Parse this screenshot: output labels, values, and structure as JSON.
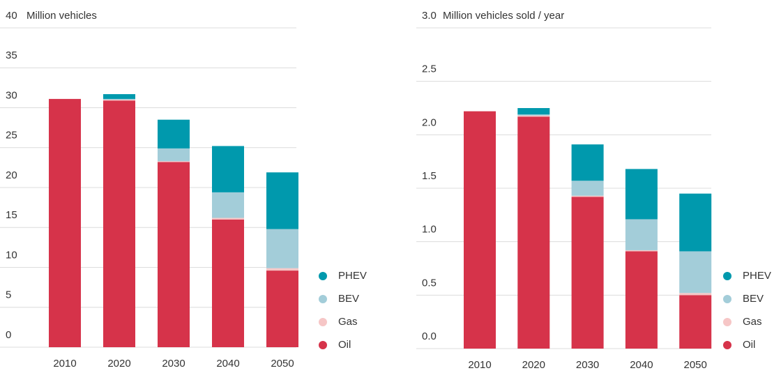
{
  "chart_data": [
    {
      "type": "bar",
      "stacked": true,
      "y_label": "Million vehicles",
      "categories": [
        "2010",
        "2020",
        "2030",
        "2040",
        "2050"
      ],
      "series": [
        {
          "name": "Oil",
          "color": "#d6334a",
          "values": [
            31.1,
            30.9,
            23.2,
            16.0,
            9.6
          ]
        },
        {
          "name": "Gas",
          "color": "#f6c6c6",
          "values": [
            0,
            0.1,
            0.1,
            0.2,
            0.3
          ]
        },
        {
          "name": "BEV",
          "color": "#a3cdd9",
          "values": [
            0,
            0.1,
            1.6,
            3.2,
            4.9
          ]
        },
        {
          "name": "PHEV",
          "color": "#0099ad",
          "values": [
            0,
            0.6,
            3.6,
            5.8,
            7.1
          ]
        }
      ],
      "ylim": [
        0,
        40
      ],
      "yticks": [
        0,
        5,
        10,
        15,
        20,
        25,
        30,
        35,
        40
      ],
      "grid": true,
      "legend": "lower right"
    },
    {
      "type": "bar",
      "stacked": true,
      "y_label": "Million vehicles sold / year",
      "categories": [
        "2010",
        "2020",
        "2030",
        "2040",
        "2050"
      ],
      "series": [
        {
          "name": "Oil",
          "color": "#d6334a",
          "values": [
            2.22,
            2.17,
            1.42,
            0.91,
            0.5
          ]
        },
        {
          "name": "Gas",
          "color": "#f6c6c6",
          "values": [
            0,
            0.01,
            0.01,
            0.01,
            0.02
          ]
        },
        {
          "name": "BEV",
          "color": "#a3cdd9",
          "values": [
            0,
            0.01,
            0.14,
            0.29,
            0.39
          ]
        },
        {
          "name": "PHEV",
          "color": "#0099ad",
          "values": [
            0,
            0.06,
            0.34,
            0.47,
            0.54
          ]
        }
      ],
      "ylim": [
        0,
        3
      ],
      "yticks": [
        {
          "value": 0,
          "label": "0.0"
        },
        0.5,
        {
          "value": 1,
          "label": "1.0"
        },
        1.5,
        {
          "value": 2,
          "label": "2.0"
        },
        2.5,
        {
          "value": 3,
          "label": "3.0"
        }
      ],
      "grid": true,
      "legend": "lower right"
    }
  ]
}
